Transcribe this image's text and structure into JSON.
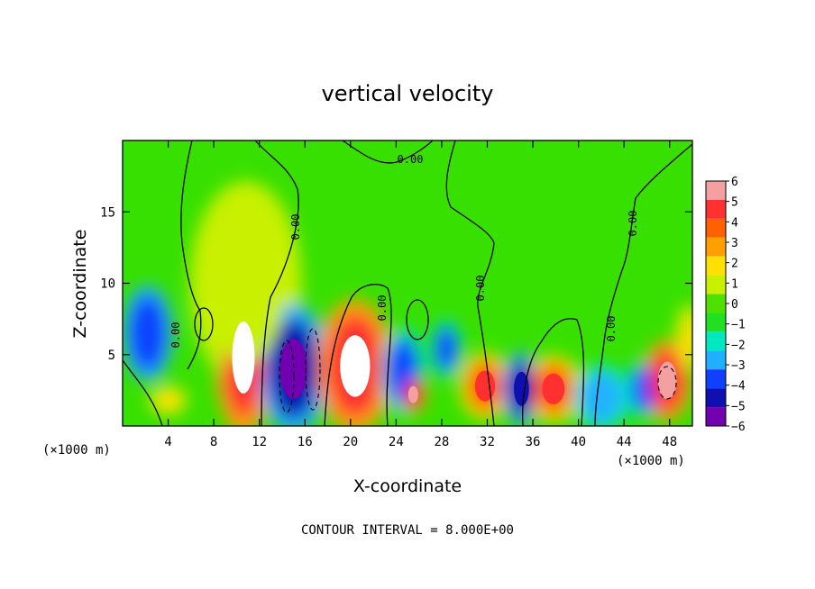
{
  "chart_data": {
    "type": "heatmap",
    "title": "vertical velocity",
    "xlabel": "X-coordinate",
    "ylabel": "Z-coordinate",
    "x_unit_left": "(×1000 m)",
    "x_unit_right": "(×1000 m)",
    "x_ticks": [
      4,
      8,
      12,
      16,
      20,
      24,
      28,
      32,
      36,
      40,
      44,
      48
    ],
    "y_ticks": [
      5,
      10,
      15
    ],
    "xlim": [
      0,
      50
    ],
    "ylim": [
      0,
      20
    ],
    "colorbar_levels": [
      6,
      5,
      4,
      3,
      2,
      1,
      0,
      -1,
      -2,
      -3,
      -4,
      -5,
      -6
    ],
    "colorbar_colors": [
      "#f4a0a0",
      "#ff3030",
      "#ff6000",
      "#ffa000",
      "#ffe000",
      "#c8f000",
      "#50e000",
      "#20e020",
      "#00e8c0",
      "#20b0ff",
      "#1040ff",
      "#1010b0",
      "#7000b0"
    ],
    "contour_interval_text": "CONTOUR INTERVAL = 8.000E+00",
    "contour_labels": [
      "0.00",
      "0.00",
      "0.00",
      "0.00",
      "0.00",
      "0.00",
      "0.00"
    ],
    "cells": [
      {
        "x": 2.2,
        "z": 6.5,
        "value": -4.5,
        "rx": 1.6,
        "rz": 2.6
      },
      {
        "x": 10.6,
        "z": 4.8,
        "value": 6.5,
        "rx": 1.8,
        "rz": 4.2
      },
      {
        "x": 10.8,
        "z": 10.0,
        "value": 2.0,
        "rx": 3.5,
        "rz": 5.5
      },
      {
        "x": 15.0,
        "z": 4.0,
        "value": -5.5,
        "rx": 2.2,
        "rz": 3.5
      },
      {
        "x": 20.4,
        "z": 4.2,
        "value": 6.5,
        "rx": 2.4,
        "rz": 3.6
      },
      {
        "x": 24.6,
        "z": 3.8,
        "value": -4.0,
        "rx": 1.4,
        "rz": 2.4
      },
      {
        "x": 25.5,
        "z": 2.2,
        "value": 6.0,
        "rx": 0.8,
        "rz": 1.0
      },
      {
        "x": 28.4,
        "z": 5.4,
        "value": -4.0,
        "rx": 1.0,
        "rz": 1.6
      },
      {
        "x": 31.8,
        "z": 2.8,
        "value": 5.0,
        "rx": 1.6,
        "rz": 1.8
      },
      {
        "x": 35.0,
        "z": 2.6,
        "value": -5.0,
        "rx": 1.2,
        "rz": 2.0
      },
      {
        "x": 37.8,
        "z": 2.6,
        "value": 5.5,
        "rx": 1.8,
        "rz": 1.8
      },
      {
        "x": 42.0,
        "z": 2.0,
        "value": -3.5,
        "rx": 1.8,
        "rz": 1.8
      },
      {
        "x": 45.8,
        "z": 2.6,
        "value": -4.0,
        "rx": 1.2,
        "rz": 1.6
      },
      {
        "x": 47.8,
        "z": 3.2,
        "value": 6.0,
        "rx": 1.5,
        "rz": 2.2
      },
      {
        "x": 49.7,
        "z": 6.2,
        "value": 3.0,
        "rx": 0.8,
        "rz": 1.8
      },
      {
        "x": 4.0,
        "z": 1.8,
        "value": 3.0,
        "rx": 1.2,
        "rz": 0.8
      }
    ]
  }
}
